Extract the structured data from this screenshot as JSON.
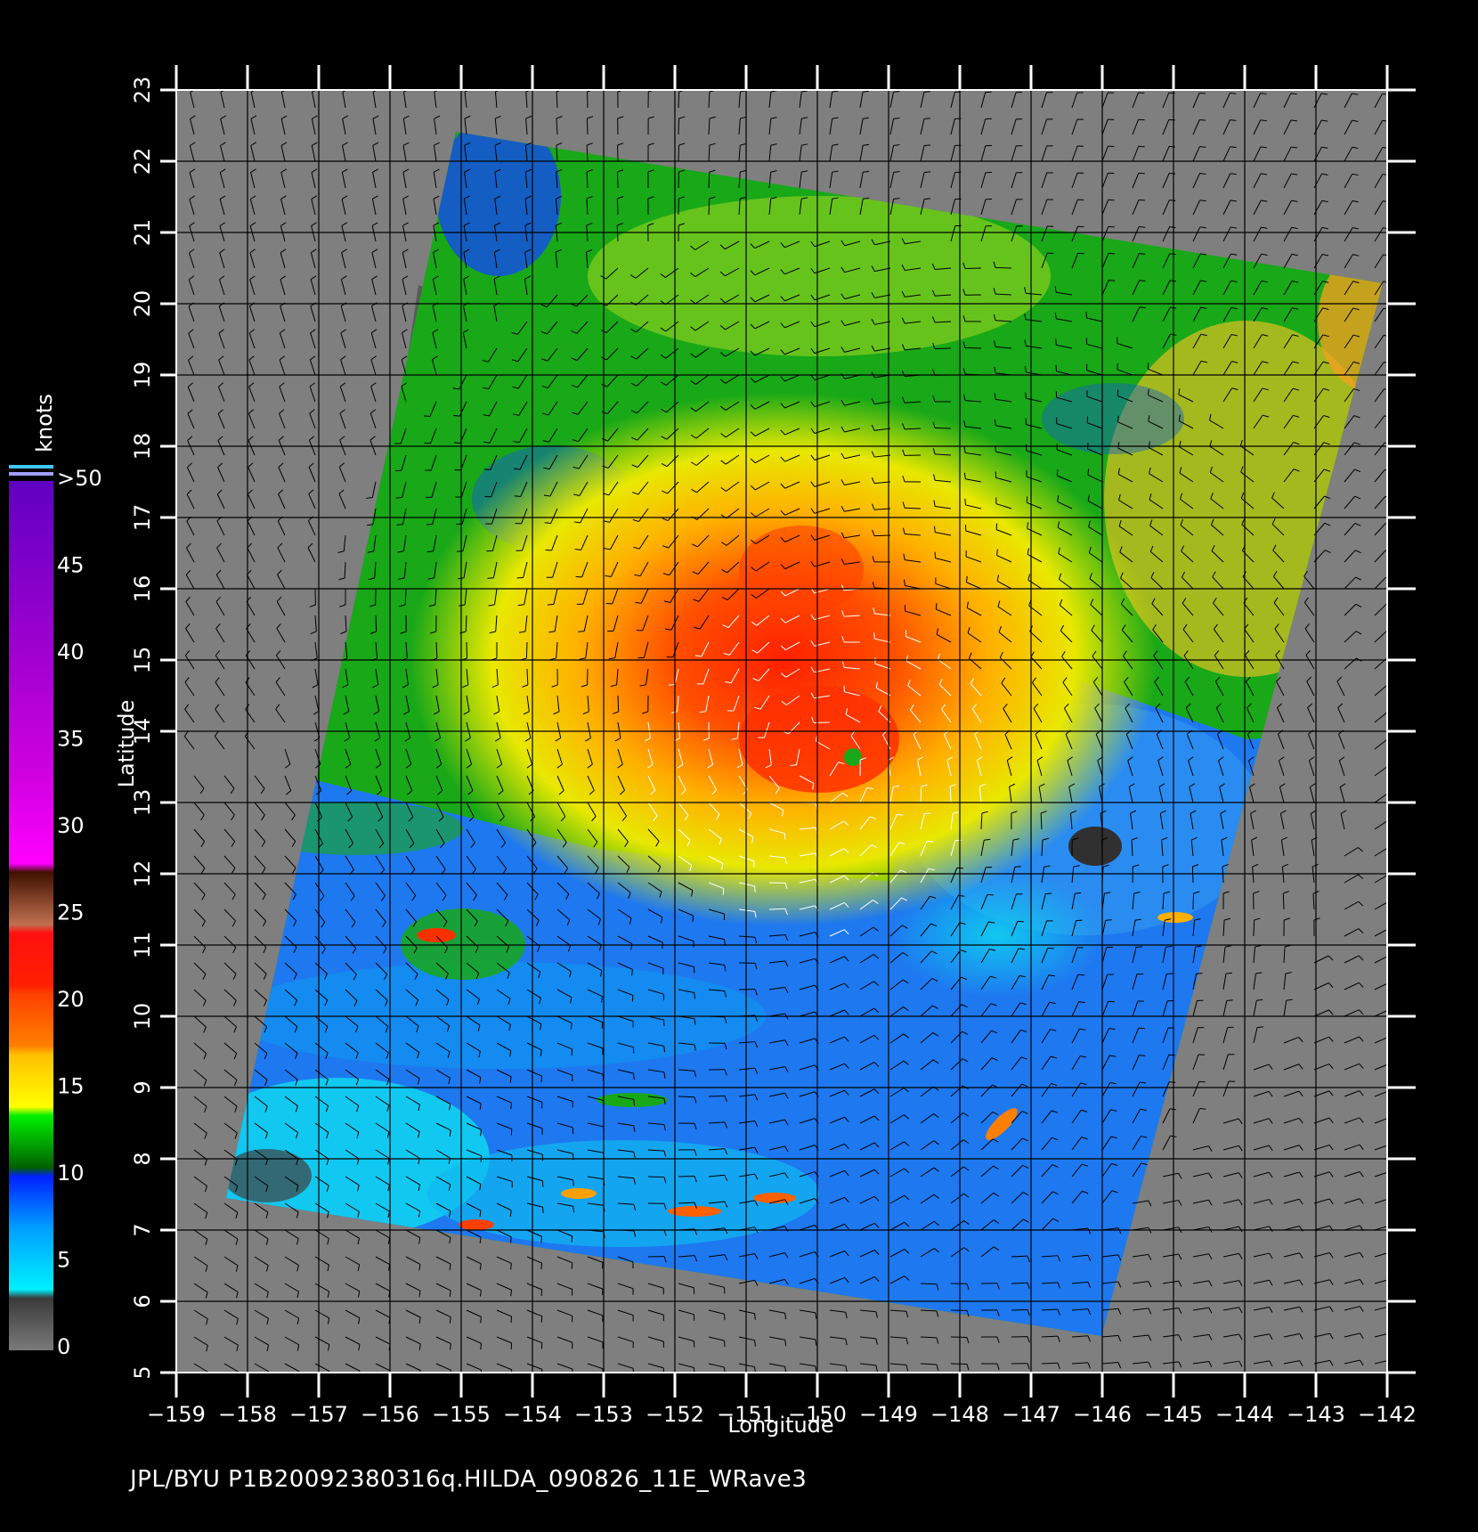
{
  "chart_data": {
    "type": "heatmap",
    "xlabel": "Longitude",
    "ylabel": "Latitude",
    "xlim": [
      -159,
      -142
    ],
    "ylim": [
      5,
      23
    ],
    "x_ticks": [
      "−159",
      "−158",
      "−157",
      "−156",
      "−155",
      "−154",
      "−153",
      "−152",
      "−151",
      "−150",
      "−149",
      "−148",
      "−147",
      "−146",
      "−145",
      "−144",
      "−143",
      "−142"
    ],
    "y_ticks": [
      "5",
      "6",
      "7",
      "8",
      "9",
      "10",
      "11",
      "12",
      "13",
      "14",
      "15",
      "16",
      "17",
      "18",
      "19",
      "20",
      "21",
      "22",
      "23"
    ],
    "grid": true,
    "colorbar": {
      "title": "knots",
      "levels": [
        {
          "label": "0",
          "color": "#7a7a7a"
        },
        {
          "label": "5",
          "color": "#00e5f5"
        },
        {
          "label": "10",
          "color": "#1560ff"
        },
        {
          "label": "15",
          "color": "#00a000"
        },
        {
          "label": "20",
          "color": "#f5f000"
        },
        {
          "label": "25",
          "color": "#ff7000"
        },
        {
          "label": "30",
          "color": "#ff2010"
        },
        {
          "label": "35",
          "color": "#c06040"
        },
        {
          "label": "40",
          "color": "#f000f0"
        },
        {
          "label": "45",
          "color": "#b000d0"
        },
        {
          "label": ">50",
          "color": "#7000c0"
        }
      ]
    },
    "storm_center": {
      "lon": -150.0,
      "lat": 13.6
    }
  },
  "colors": {
    "background": "#000000",
    "land_nodata": "#7f7f7f",
    "grid": "#000000"
  },
  "footer": "JPL/BYU  P1B20092380316q.HILDA_090826_11E_WRave3"
}
